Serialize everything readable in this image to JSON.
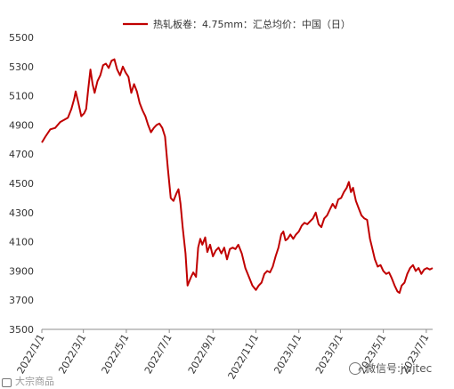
{
  "chart_data": {
    "type": "line",
    "title": "",
    "xlabel": "",
    "ylabel": "",
    "ylim": [
      3500,
      5500
    ],
    "yticks": [
      3500,
      3700,
      3900,
      4100,
      4300,
      4500,
      4700,
      4900,
      5100,
      5300,
      5500
    ],
    "xlim": [
      "2022-01-01",
      "2023-07-10"
    ],
    "xticks": [
      {
        "date": "2022-01-01",
        "label": "2022/1/1"
      },
      {
        "date": "2022-03-01",
        "label": "2022/3/1"
      },
      {
        "date": "2022-05-01",
        "label": "2022/5/1"
      },
      {
        "date": "2022-07-01",
        "label": "2022/7/1"
      },
      {
        "date": "2022-09-01",
        "label": "2022/9/1"
      },
      {
        "date": "2022-11-01",
        "label": "2022/11/1"
      },
      {
        "date": "2023-01-01",
        "label": "2023/1/1"
      },
      {
        "date": "2023-03-01",
        "label": "2023/3/1"
      },
      {
        "date": "2023-05-01",
        "label": "2023/5/1"
      },
      {
        "date": "2023-07-01",
        "label": "2023/7/1"
      }
    ],
    "legend": {
      "position": "top-center"
    },
    "grid": false,
    "series": [
      {
        "name": "热轧板卷：4.75mm：汇总均价：中国（日）",
        "color": "#c00000",
        "points": [
          [
            "2022-01-01",
            4780
          ],
          [
            "2022-01-06",
            4820
          ],
          [
            "2022-01-13",
            4870
          ],
          [
            "2022-01-20",
            4880
          ],
          [
            "2022-01-27",
            4920
          ],
          [
            "2022-02-07",
            4950
          ],
          [
            "2022-02-12",
            5010
          ],
          [
            "2022-02-16",
            5080
          ],
          [
            "2022-02-18",
            5130
          ],
          [
            "2022-02-22",
            5050
          ],
          [
            "2022-02-26",
            4960
          ],
          [
            "2022-03-02",
            4980
          ],
          [
            "2022-03-05",
            5010
          ],
          [
            "2022-03-08",
            5150
          ],
          [
            "2022-03-11",
            5280
          ],
          [
            "2022-03-14",
            5180
          ],
          [
            "2022-03-17",
            5120
          ],
          [
            "2022-03-21",
            5200
          ],
          [
            "2022-03-25",
            5240
          ],
          [
            "2022-03-29",
            5310
          ],
          [
            "2022-04-02",
            5320
          ],
          [
            "2022-04-06",
            5290
          ],
          [
            "2022-04-10",
            5340
          ],
          [
            "2022-04-14",
            5350
          ],
          [
            "2022-04-18",
            5280
          ],
          [
            "2022-04-22",
            5240
          ],
          [
            "2022-04-26",
            5300
          ],
          [
            "2022-04-30",
            5260
          ],
          [
            "2022-05-04",
            5230
          ],
          [
            "2022-05-08",
            5120
          ],
          [
            "2022-05-12",
            5180
          ],
          [
            "2022-05-16",
            5130
          ],
          [
            "2022-05-20",
            5050
          ],
          [
            "2022-05-24",
            5000
          ],
          [
            "2022-05-28",
            4960
          ],
          [
            "2022-06-01",
            4900
          ],
          [
            "2022-06-05",
            4850
          ],
          [
            "2022-06-09",
            4880
          ],
          [
            "2022-06-13",
            4900
          ],
          [
            "2022-06-17",
            4910
          ],
          [
            "2022-06-21",
            4880
          ],
          [
            "2022-06-25",
            4820
          ],
          [
            "2022-06-29",
            4600
          ],
          [
            "2022-07-03",
            4400
          ],
          [
            "2022-07-07",
            4380
          ],
          [
            "2022-07-11",
            4430
          ],
          [
            "2022-07-14",
            4460
          ],
          [
            "2022-07-17",
            4360
          ],
          [
            "2022-07-20",
            4200
          ],
          [
            "2022-07-24",
            4020
          ],
          [
            "2022-07-27",
            3800
          ],
          [
            "2022-08-01",
            3860
          ],
          [
            "2022-08-04",
            3890
          ],
          [
            "2022-08-08",
            3860
          ],
          [
            "2022-08-11",
            4060
          ],
          [
            "2022-08-14",
            4120
          ],
          [
            "2022-08-17",
            4080
          ],
          [
            "2022-08-21",
            4130
          ],
          [
            "2022-08-24",
            4030
          ],
          [
            "2022-08-28",
            4080
          ],
          [
            "2022-09-01",
            4000
          ],
          [
            "2022-09-05",
            4040
          ],
          [
            "2022-09-09",
            4060
          ],
          [
            "2022-09-13",
            4020
          ],
          [
            "2022-09-17",
            4060
          ],
          [
            "2022-09-21",
            3980
          ],
          [
            "2022-09-25",
            4050
          ],
          [
            "2022-09-29",
            4060
          ],
          [
            "2022-10-03",
            4050
          ],
          [
            "2022-10-07",
            4080
          ],
          [
            "2022-10-12",
            4020
          ],
          [
            "2022-10-17",
            3920
          ],
          [
            "2022-10-22",
            3860
          ],
          [
            "2022-10-27",
            3800
          ],
          [
            "2022-11-01",
            3770
          ],
          [
            "2022-11-05",
            3800
          ],
          [
            "2022-11-09",
            3820
          ],
          [
            "2022-11-13",
            3880
          ],
          [
            "2022-11-17",
            3900
          ],
          [
            "2022-11-21",
            3890
          ],
          [
            "2022-11-25",
            3930
          ],
          [
            "2022-11-29",
            4000
          ],
          [
            "2022-12-03",
            4060
          ],
          [
            "2022-12-07",
            4150
          ],
          [
            "2022-12-10",
            4170
          ],
          [
            "2022-12-13",
            4110
          ],
          [
            "2022-12-16",
            4120
          ],
          [
            "2022-12-20",
            4150
          ],
          [
            "2022-12-24",
            4120
          ],
          [
            "2022-12-28",
            4150
          ],
          [
            "2023-01-01",
            4170
          ],
          [
            "2023-01-05",
            4210
          ],
          [
            "2023-01-09",
            4230
          ],
          [
            "2023-01-13",
            4220
          ],
          [
            "2023-01-17",
            4240
          ],
          [
            "2023-01-21",
            4260
          ],
          [
            "2023-01-25",
            4300
          ],
          [
            "2023-01-29",
            4220
          ],
          [
            "2023-02-02",
            4200
          ],
          [
            "2023-02-06",
            4260
          ],
          [
            "2023-02-10",
            4280
          ],
          [
            "2023-02-14",
            4320
          ],
          [
            "2023-02-18",
            4360
          ],
          [
            "2023-02-22",
            4330
          ],
          [
            "2023-02-26",
            4390
          ],
          [
            "2023-03-02",
            4400
          ],
          [
            "2023-03-06",
            4440
          ],
          [
            "2023-03-10",
            4470
          ],
          [
            "2023-03-13",
            4510
          ],
          [
            "2023-03-16",
            4440
          ],
          [
            "2023-03-19",
            4470
          ],
          [
            "2023-03-23",
            4380
          ],
          [
            "2023-03-27",
            4330
          ],
          [
            "2023-03-31",
            4280
          ],
          [
            "2023-04-04",
            4260
          ],
          [
            "2023-04-08",
            4250
          ],
          [
            "2023-04-12",
            4120
          ],
          [
            "2023-04-15",
            4060
          ],
          [
            "2023-04-19",
            3980
          ],
          [
            "2023-04-23",
            3930
          ],
          [
            "2023-04-27",
            3940
          ],
          [
            "2023-05-01",
            3900
          ],
          [
            "2023-05-05",
            3880
          ],
          [
            "2023-05-09",
            3890
          ],
          [
            "2023-05-13",
            3850
          ],
          [
            "2023-05-17",
            3800
          ],
          [
            "2023-05-21",
            3760
          ],
          [
            "2023-05-24",
            3750
          ],
          [
            "2023-05-27",
            3800
          ],
          [
            "2023-05-31",
            3820
          ],
          [
            "2023-06-04",
            3880
          ],
          [
            "2023-06-08",
            3920
          ],
          [
            "2023-06-12",
            3940
          ],
          [
            "2023-06-16",
            3900
          ],
          [
            "2023-06-20",
            3920
          ],
          [
            "2023-06-24",
            3880
          ],
          [
            "2023-06-28",
            3910
          ],
          [
            "2023-07-02",
            3920
          ],
          [
            "2023-07-06",
            3910
          ],
          [
            "2023-07-10",
            3920
          ]
        ]
      }
    ]
  },
  "watermarks": {
    "left": "大宗商品",
    "right": "微信号:jwjtec"
  }
}
